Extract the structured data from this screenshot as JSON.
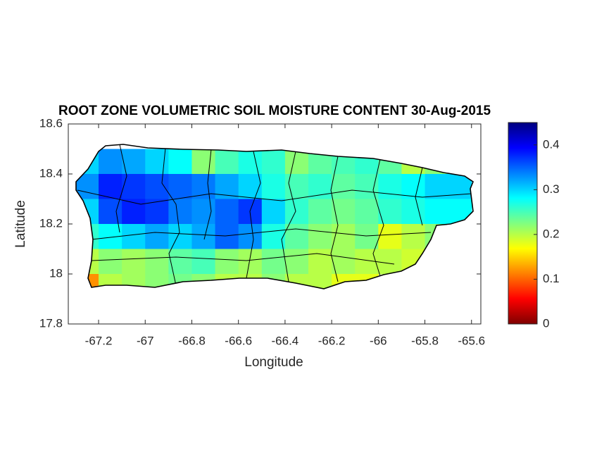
{
  "chart_data": {
    "type": "heatmap",
    "title": "ROOT ZONE VOLUMETRIC SOIL MOISTURE CONTENT 30-Aug-2015",
    "x_label": "Longitude",
    "y_label": "Latitude",
    "xlim": [
      -67.33,
      -65.56
    ],
    "ylim": [
      17.8,
      18.6
    ],
    "xticks": [
      -67.2,
      -67,
      -66.8,
      -66.6,
      -66.4,
      -66.2,
      -66,
      -65.8,
      -65.6
    ],
    "yticks": [
      17.8,
      18,
      18.2,
      18.4,
      18.6
    ],
    "x": [
      -67.25,
      -67.15,
      -67.05,
      -66.95,
      -66.85,
      -66.75,
      -66.65,
      -66.55,
      -66.45,
      -66.35,
      -66.25,
      -66.15,
      -66.05,
      -65.95,
      -65.85,
      -65.75,
      -65.65
    ],
    "y": [
      18.45,
      18.35,
      18.25,
      18.15,
      18.05,
      17.95
    ],
    "values": [
      [
        0.3,
        0.33,
        0.32,
        0.3,
        0.28,
        0.22,
        0.25,
        0.27,
        0.26,
        0.22,
        0.24,
        0.25,
        0.26,
        0.24,
        0.2,
        0.22,
        0.28
      ],
      [
        0.33,
        0.38,
        0.37,
        0.36,
        0.35,
        0.34,
        0.32,
        0.3,
        0.27,
        0.25,
        0.26,
        0.24,
        0.25,
        0.27,
        0.28,
        0.3,
        0.3
      ],
      [
        0.3,
        0.36,
        0.38,
        0.37,
        0.34,
        0.33,
        0.35,
        0.37,
        0.3,
        0.26,
        0.24,
        0.23,
        0.24,
        0.26,
        0.27,
        0.28,
        0.28
      ],
      [
        0.26,
        0.28,
        0.3,
        0.32,
        0.3,
        0.32,
        0.35,
        0.33,
        0.27,
        0.24,
        0.22,
        0.21,
        0.23,
        0.18,
        0.2,
        0.22,
        null
      ],
      [
        0.2,
        0.22,
        0.21,
        0.22,
        0.24,
        0.25,
        0.22,
        0.21,
        0.23,
        0.22,
        0.2,
        0.21,
        0.2,
        0.2,
        0.19,
        null,
        null
      ],
      [
        0.12,
        0.2,
        0.21,
        0.22,
        0.23,
        0.22,
        0.2,
        0.2,
        0.22,
        0.2,
        0.2,
        0.18,
        0.18,
        null,
        null,
        null,
        null
      ]
    ],
    "colormap": "jet-reversed",
    "clim": [
      0,
      0.45
    ],
    "cticks": [
      0,
      0.1,
      0.2,
      0.3,
      0.4
    ]
  }
}
